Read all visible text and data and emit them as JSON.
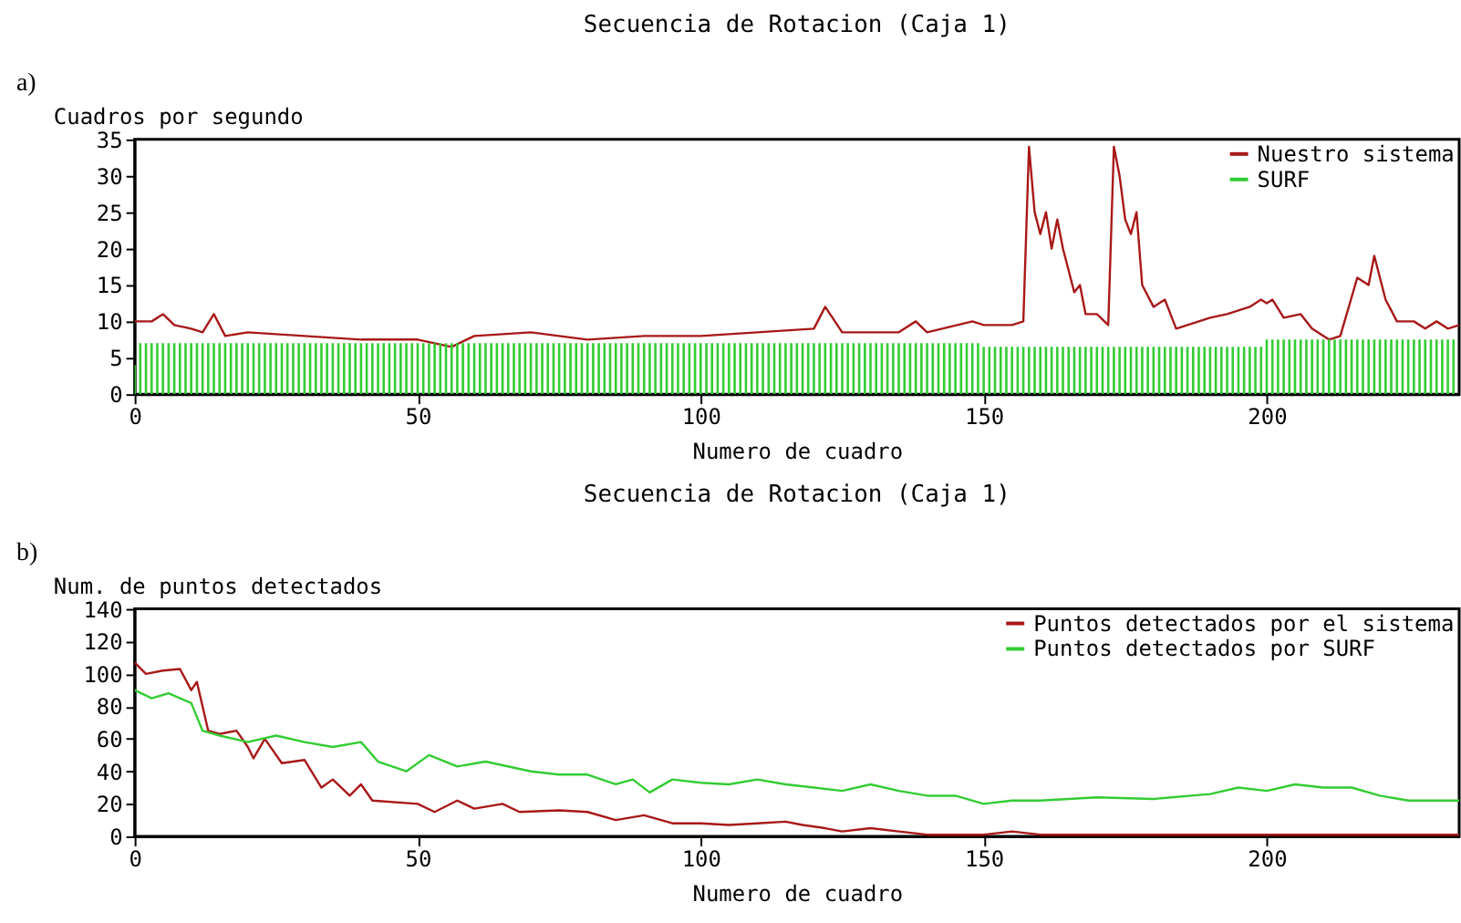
{
  "chart_data": [
    {
      "type": "line",
      "title": "Secuencia de Rotacion (Caja 1)",
      "xlabel": "Numero de cuadro",
      "ylabel": "Cuadros por segundo",
      "annotations": [
        "a)"
      ],
      "xlim": [
        0,
        234
      ],
      "xticks": [
        0,
        50,
        100,
        150,
        200
      ],
      "ylim": [
        0,
        35
      ],
      "yticks": [
        0,
        5,
        10,
        15,
        20,
        25,
        30,
        35
      ],
      "legend": "top right",
      "grid": false,
      "series": [
        {
          "name": "Nuestro sistema",
          "color": "#a81818",
          "type": "line",
          "x": [
            0,
            3,
            5,
            7,
            10,
            12,
            14,
            16,
            20,
            30,
            40,
            50,
            56,
            60,
            70,
            80,
            90,
            100,
            110,
            120,
            122,
            125,
            135,
            138,
            140,
            148,
            150,
            155,
            157,
            158,
            159,
            160,
            161,
            162,
            163,
            164,
            166,
            167,
            168,
            170,
            172,
            173,
            174,
            175,
            176,
            177,
            178,
            180,
            182,
            184,
            188,
            190,
            193,
            197,
            199,
            200,
            201,
            203,
            206,
            208,
            211,
            213,
            216,
            218,
            219,
            221,
            223,
            226,
            228,
            230,
            232,
            234
          ],
          "values": [
            10,
            10,
            11,
            9.5,
            9,
            8.5,
            11,
            8,
            8.5,
            8,
            7.5,
            7.5,
            6.5,
            8,
            8.5,
            7.5,
            8,
            8,
            8.5,
            9,
            12,
            8.5,
            8.5,
            10,
            8.5,
            10,
            9.5,
            9.5,
            10,
            34,
            25,
            22,
            25,
            20,
            24,
            20,
            14,
            15,
            11,
            11,
            9.5,
            34,
            30,
            24,
            22,
            25,
            15,
            12,
            13,
            9,
            10,
            10.5,
            11,
            12,
            13,
            12.5,
            13,
            10.5,
            11,
            9,
            7.5,
            8,
            16,
            15,
            19,
            13,
            10,
            10,
            9,
            10,
            9,
            9.5
          ]
        },
        {
          "name": "SURF",
          "color": "#33cc33",
          "type": "bar",
          "x": [
            0,
            1,
            2,
            3,
            4,
            5,
            6,
            7,
            8,
            9,
            10,
            11,
            12,
            13,
            14,
            15,
            16,
            17,
            18,
            19,
            20,
            21,
            22,
            23,
            24,
            25,
            26,
            27,
            28,
            29,
            30,
            31,
            32,
            33,
            34,
            35,
            36,
            37,
            38,
            39,
            40,
            41,
            42,
            43,
            44,
            45,
            46,
            47,
            48,
            49,
            50,
            51,
            52,
            53,
            54,
            55,
            56,
            57,
            58,
            59,
            60,
            61,
            62,
            63,
            64,
            65,
            66,
            67,
            68,
            69,
            70,
            71,
            72,
            73,
            74,
            75,
            76,
            77,
            78,
            79,
            80,
            81,
            82,
            83,
            84,
            85,
            86,
            87,
            88,
            89,
            90,
            91,
            92,
            93,
            94,
            95,
            96,
            97,
            98,
            99,
            100,
            101,
            102,
            103,
            104,
            105,
            106,
            107,
            108,
            109,
            110,
            111,
            112,
            113,
            114,
            115,
            116,
            117,
            118,
            119,
            120,
            121,
            122,
            123,
            124,
            125,
            126,
            127,
            128,
            129,
            130,
            131,
            132,
            133,
            134,
            135,
            136,
            137,
            138,
            139,
            140,
            141,
            142,
            143,
            144,
            145,
            146,
            147,
            148,
            149,
            150,
            151,
            152,
            153,
            154,
            155,
            156,
            157,
            158,
            159,
            160,
            161,
            162,
            163,
            164,
            165,
            166,
            167,
            168,
            169,
            170,
            171,
            172,
            173,
            174,
            175,
            176,
            177,
            178,
            179,
            180,
            181,
            182,
            183,
            184,
            185,
            186,
            187,
            188,
            189,
            190,
            191,
            192,
            193,
            194,
            195,
            196,
            197,
            198,
            199,
            200,
            201,
            202,
            203,
            204,
            205,
            206,
            207,
            208,
            209,
            210,
            211,
            212,
            213,
            214,
            215,
            216,
            217,
            218,
            219,
            220,
            221,
            222,
            223,
            224,
            225,
            226,
            227,
            228,
            229,
            230,
            231,
            232,
            233
          ],
          "values": [
            4,
            7,
            7,
            7,
            7,
            7,
            7,
            7,
            7,
            7,
            7,
            7,
            7,
            7,
            7,
            7,
            7,
            7,
            7,
            7,
            7,
            7,
            7,
            7,
            7,
            7,
            7,
            7,
            7,
            7,
            7,
            7,
            7,
            7,
            7,
            7,
            7,
            7,
            7,
            7,
            7,
            7,
            7,
            7,
            7,
            7,
            7,
            7,
            7,
            7,
            7,
            7,
            7,
            7,
            7,
            7,
            7,
            7,
            7,
            7,
            7,
            7,
            7,
            7,
            7,
            7,
            7,
            7,
            7,
            7,
            7,
            7,
            7,
            7,
            7,
            7,
            7,
            7,
            7,
            7,
            7,
            7,
            7,
            7,
            7,
            7,
            7,
            7,
            7,
            7,
            7,
            7,
            7,
            7,
            7,
            7,
            7,
            7,
            7,
            7,
            7,
            7,
            7,
            7,
            7,
            7,
            7,
            7,
            7,
            7,
            7,
            7,
            7,
            7,
            7,
            7,
            7,
            7,
            7,
            7,
            7,
            7,
            7,
            7,
            7,
            7,
            7,
            7,
            7,
            7,
            7,
            7,
            7,
            7,
            7,
            7,
            7,
            7,
            7,
            7,
            7,
            7,
            7,
            7,
            7,
            7,
            7,
            7,
            7,
            7,
            6.5,
            6.5,
            6.5,
            6.5,
            6.5,
            6.5,
            6.5,
            6.5,
            6.5,
            6.5,
            6.5,
            6.5,
            6.5,
            6.5,
            6.5,
            6.5,
            6.5,
            6.5,
            6.5,
            6.5,
            6.5,
            6.5,
            6.5,
            6.5,
            6.5,
            6.5,
            6.5,
            6.5,
            6.5,
            6.5,
            6.5,
            6.5,
            6.5,
            6.5,
            6.5,
            6.5,
            6.5,
            6.5,
            6.5,
            6.5,
            6.5,
            6.5,
            6.5,
            6.5,
            6.5,
            6.5,
            6.5,
            6.5,
            6.5,
            6.5,
            7.5,
            7.5,
            7.5,
            7.5,
            7.5,
            7.5,
            7.5,
            7.5,
            7.5,
            7.5,
            7.5,
            7.5,
            7.5,
            7.5,
            7.5,
            7.5,
            7.5,
            7.5,
            7.5,
            7.5,
            7.5,
            7.5,
            7.5,
            7.5,
            7.5,
            7.5,
            7.5,
            7.5,
            7.5,
            7.5,
            7.5,
            7.5,
            7.5,
            7.5
          ]
        }
      ]
    },
    {
      "type": "line",
      "title": "Secuencia de Rotacion (Caja 1)",
      "xlabel": "Numero de cuadro",
      "ylabel": "Num. de puntos detectados",
      "annotations": [
        "b)"
      ],
      "xlim": [
        0,
        234
      ],
      "xticks": [
        0,
        50,
        100,
        150,
        200
      ],
      "ylim": [
        0,
        140
      ],
      "yticks": [
        0,
        20,
        40,
        60,
        80,
        100,
        120,
        140
      ],
      "legend": "top right",
      "grid": false,
      "series": [
        {
          "name": "Puntos detectados por el sistema",
          "color": "#a81818",
          "x": [
            0,
            2,
            5,
            8,
            10,
            11,
            13,
            15,
            18,
            20,
            21,
            23,
            26,
            30,
            33,
            35,
            38,
            40,
            42,
            50,
            53,
            57,
            60,
            65,
            68,
            75,
            80,
            85,
            90,
            95,
            100,
            105,
            110,
            115,
            118,
            122,
            125,
            130,
            135,
            140,
            150,
            155,
            160,
            234
          ],
          "values": [
            107,
            100,
            102,
            103,
            90,
            95,
            65,
            63,
            65,
            55,
            48,
            60,
            45,
            47,
            30,
            35,
            25,
            32,
            22,
            20,
            15,
            22,
            17,
            20,
            15,
            16,
            15,
            10,
            13,
            8,
            8,
            7,
            8,
            9,
            7,
            5,
            3,
            5,
            3,
            1,
            1,
            3,
            1,
            1
          ]
        },
        {
          "name": "Puntos detectados por SURF",
          "color": "#33cc33",
          "x": [
            0,
            3,
            6,
            10,
            12,
            15,
            20,
            25,
            30,
            35,
            40,
            43,
            48,
            52,
            57,
            62,
            70,
            75,
            80,
            85,
            88,
            91,
            95,
            100,
            105,
            110,
            115,
            120,
            125,
            130,
            135,
            140,
            145,
            150,
            155,
            160,
            170,
            180,
            190,
            195,
            200,
            205,
            210,
            215,
            220,
            225,
            230,
            234
          ],
          "values": [
            90,
            85,
            88,
            82,
            65,
            62,
            58,
            62,
            58,
            55,
            58,
            46,
            40,
            50,
            43,
            46,
            40,
            38,
            38,
            32,
            35,
            27,
            35,
            33,
            32,
            35,
            32,
            30,
            28,
            32,
            28,
            25,
            25,
            20,
            22,
            22,
            24,
            23,
            26,
            30,
            28,
            32,
            30,
            30,
            25,
            22,
            22,
            22
          ]
        }
      ]
    }
  ]
}
